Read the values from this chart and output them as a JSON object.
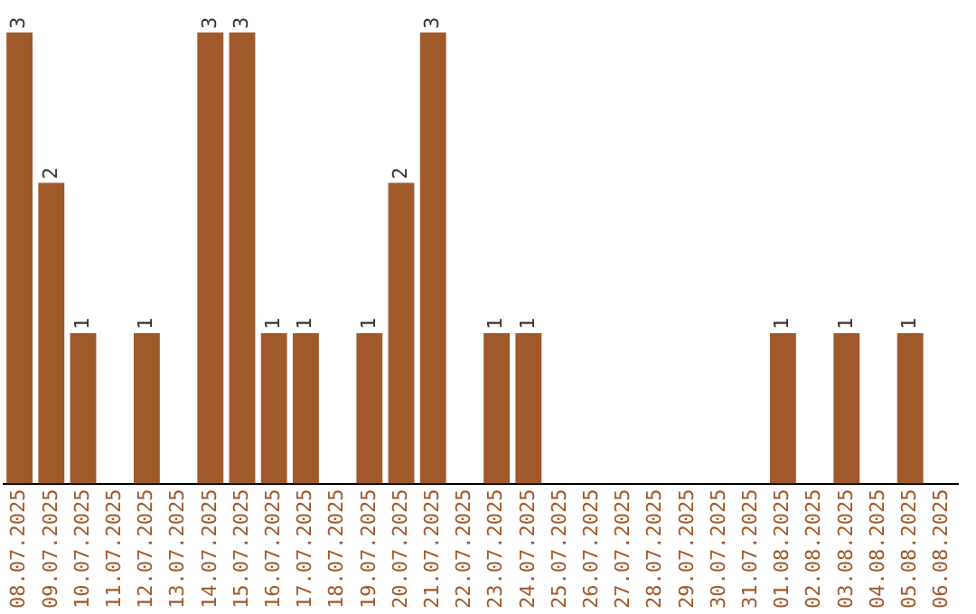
{
  "chart_data": {
    "type": "bar",
    "categories": [
      "08.07.2025",
      "09.07.2025",
      "10.07.2025",
      "11.07.2025",
      "12.07.2025",
      "13.07.2025",
      "14.07.2025",
      "15.07.2025",
      "16.07.2025",
      "17.07.2025",
      "18.07.2025",
      "19.07.2025",
      "20.07.2025",
      "21.07.2025",
      "22.07.2025",
      "23.07.2025",
      "24.07.2025",
      "25.07.2025",
      "26.07.2025",
      "27.07.2025",
      "28.07.2025",
      "29.07.2025",
      "30.07.2025",
      "31.07.2025",
      "01.08.2025",
      "02.08.2025",
      "03.08.2025",
      "04.08.2025",
      "05.08.2025",
      "06.08.2025"
    ],
    "values": [
      3,
      2,
      1,
      0,
      1,
      0,
      3,
      3,
      1,
      1,
      0,
      1,
      2,
      3,
      0,
      1,
      1,
      0,
      0,
      0,
      0,
      0,
      0,
      0,
      1,
      0,
      1,
      0,
      1,
      0
    ],
    "value_labels": [
      "3",
      "2",
      "1",
      null,
      "1",
      null,
      "3",
      "3",
      "1",
      "1",
      null,
      "1",
      "2",
      "3",
      null,
      "1",
      "1",
      null,
      null,
      null,
      null,
      null,
      null,
      null,
      "1",
      null,
      "1",
      null,
      "1",
      null
    ],
    "color": "#a0592a",
    "ylim": [
      0,
      3
    ],
    "tick_labels": "x",
    "grid": false,
    "legend": false
  }
}
